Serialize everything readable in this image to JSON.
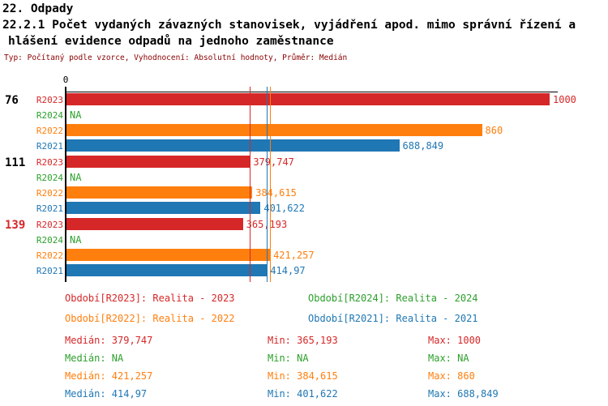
{
  "header": {
    "title_line1": "22. Odpady",
    "title_line2": "22.2.1 Počet vydaných závazných stanovisek, vyjádření apod. mimo správní řízení a",
    "title_line3": "hlášení evidence odpadů na jednoho zaměstnance",
    "subtitle": "Typ: Počítaný podle vzorce, Vyhodnocení: Absolutní hodnoty, Průměr: Medián"
  },
  "colors": {
    "R2023": "#d62728",
    "R2024": "#2ca02c",
    "R2022": "#ff7f0e",
    "R2021": "#1f77b4",
    "subtitle": "#8b0000",
    "axis": "#000000",
    "group_label_default": "#000000",
    "group_label_highlight": "#d62728"
  },
  "chart_data": {
    "type": "bar",
    "orientation": "horizontal",
    "value_axis": {
      "min": 0,
      "max": 1000,
      "tick_labels": [
        "0"
      ],
      "position": "top"
    },
    "series_order": [
      "R2023",
      "R2024",
      "R2022",
      "R2021"
    ],
    "groups": [
      {
        "label": "76",
        "highlight": false,
        "bars": [
          {
            "series": "R2023",
            "value": 1000,
            "label": "1000"
          },
          {
            "series": "R2024",
            "value": null,
            "label": "NA"
          },
          {
            "series": "R2022",
            "value": 860,
            "label": "860"
          },
          {
            "series": "R2021",
            "value": 688.849,
            "label": "688,849"
          }
        ]
      },
      {
        "label": "111",
        "highlight": false,
        "bars": [
          {
            "series": "R2023",
            "value": 379.747,
            "label": "379,747"
          },
          {
            "series": "R2024",
            "value": null,
            "label": "NA"
          },
          {
            "series": "R2022",
            "value": 384.615,
            "label": "384,615"
          },
          {
            "series": "R2021",
            "value": 401.622,
            "label": "401,622"
          }
        ]
      },
      {
        "label": "139",
        "highlight": true,
        "bars": [
          {
            "series": "R2023",
            "value": 365.193,
            "label": "365,193"
          },
          {
            "series": "R2024",
            "value": null,
            "label": "NA"
          },
          {
            "series": "R2022",
            "value": 421.257,
            "label": "421,257"
          },
          {
            "series": "R2021",
            "value": 414.97,
            "label": "414,97"
          }
        ]
      }
    ],
    "median_lines": [
      {
        "series": "R2023",
        "value": 379.747
      },
      {
        "series": "R2022",
        "value": 421.257
      },
      {
        "series": "R2021",
        "value": 414.97
      }
    ]
  },
  "legend": {
    "items": [
      {
        "series": "R2023",
        "text": "Období[R2023]: Realita - 2023"
      },
      {
        "series": "R2024",
        "text": "Období[R2024]: Realita - 2024"
      },
      {
        "series": "R2022",
        "text": "Období[R2022]: Realita - 2022"
      },
      {
        "series": "R2021",
        "text": "Období[R2021]: Realita - 2021"
      }
    ]
  },
  "stats": {
    "labels": {
      "median": "Medián",
      "min": "Min",
      "max": "Max"
    },
    "rows": [
      {
        "series": "R2023",
        "median": "379,747",
        "min": "365,193",
        "max": "1000"
      },
      {
        "series": "R2024",
        "median": "NA",
        "min": "NA",
        "max": "NA"
      },
      {
        "series": "R2022",
        "median": "421,257",
        "min": "384,615",
        "max": "860"
      },
      {
        "series": "R2021",
        "median": "414,97",
        "min": "401,622",
        "max": "688,849"
      }
    ]
  }
}
